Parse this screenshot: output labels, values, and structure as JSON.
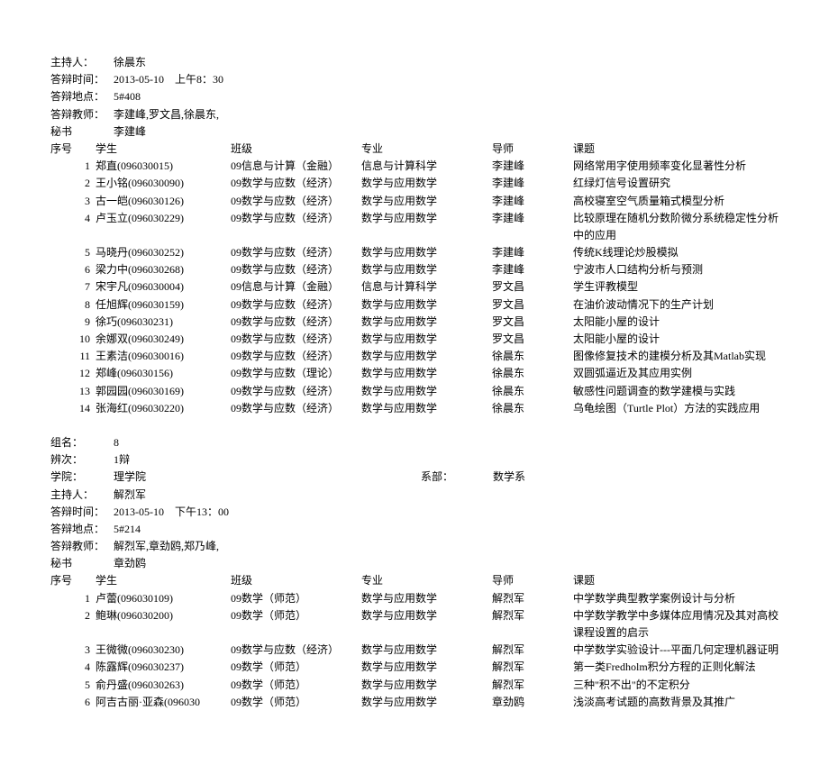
{
  "section1": {
    "host_label": "主持人：",
    "host": "徐晨东",
    "time_label": "答辩时间：",
    "time": "2013-05-10　上午8：30",
    "location_label": "答辩地点：",
    "location": "5#408",
    "teachers_label": "答辩教师：",
    "teachers": "李建峰,罗文昌,徐晨东,",
    "secretary_label": "秘书",
    "secretary": "李建峰",
    "header": {
      "num": "序号",
      "student": "学生",
      "class": "班级",
      "major": "专业",
      "advisor": "导师",
      "topic": "课题"
    },
    "rows": [
      {
        "num": "1",
        "student": "郑直(096030015)",
        "class": "09信息与计算（金融）",
        "major": "信息与计算科学",
        "advisor": "李建峰",
        "topic": "网络常用字使用频率变化显著性分析"
      },
      {
        "num": "2",
        "student": "王小铭(096030090)",
        "class": "09数学与应数（经济）",
        "major": "数学与应用数学",
        "advisor": "李建峰",
        "topic": "红绿灯信号设置研究"
      },
      {
        "num": "3",
        "student": "古一皑(096030126)",
        "class": "09数学与应数（经济）",
        "major": "数学与应用数学",
        "advisor": "李建峰",
        "topic": "高校寝室空气质量箱式模型分析"
      },
      {
        "num": "4",
        "student": "卢玉立(096030229)",
        "class": "09数学与应数（经济）",
        "major": "数学与应用数学",
        "advisor": "李建峰",
        "topic": "比较原理在随机分数阶微分系统稳定性分析中的应用"
      },
      {
        "num": "5",
        "student": "马晓丹(096030252)",
        "class": "09数学与应数（经济）",
        "major": "数学与应用数学",
        "advisor": "李建峰",
        "topic": "传统K线理论炒股模拟"
      },
      {
        "num": "6",
        "student": "梁力中(096030268)",
        "class": "09数学与应数（经济）",
        "major": "数学与应用数学",
        "advisor": "李建峰",
        "topic": "宁波市人口结构分析与预测"
      },
      {
        "num": "7",
        "student": "宋宇凡(096030004)",
        "class": "09信息与计算（金融）",
        "major": "信息与计算科学",
        "advisor": "罗文昌",
        "topic": " 学生评教模型"
      },
      {
        "num": "8",
        "student": "任旭辉(096030159)",
        "class": "09数学与应数（经济）",
        "major": "数学与应用数学",
        "advisor": "罗文昌",
        "topic": "在油价波动情况下的生产计划"
      },
      {
        "num": "9",
        "student": "徐巧(096030231)",
        "class": "09数学与应数（经济）",
        "major": "数学与应用数学",
        "advisor": "罗文昌",
        "topic": "太阳能小屋的设计"
      },
      {
        "num": "10",
        "student": "余娜双(096030249)",
        "class": "09数学与应数（经济）",
        "major": "数学与应用数学",
        "advisor": "罗文昌",
        "topic": "太阳能小屋的设计"
      },
      {
        "num": "11",
        "student": "王素洁(096030016)",
        "class": "09数学与应数（经济）",
        "major": "数学与应用数学",
        "advisor": "徐晨东",
        "topic": "图像修复技术的建模分析及其Matlab实现"
      },
      {
        "num": "12",
        "student": "郑峰(096030156)",
        "class": "09数学与应数（理论）",
        "major": "数学与应用数学",
        "advisor": "徐晨东",
        "topic": "双圆弧逼近及其应用实例"
      },
      {
        "num": "13",
        "student": "郭园园(096030169)",
        "class": "09数学与应数（经济）",
        "major": "数学与应用数学",
        "advisor": "徐晨东",
        "topic": "敏感性问题调查的数学建模与实践"
      },
      {
        "num": "14",
        "student": "张海红(096030220)",
        "class": "09数学与应数（经济）",
        "major": "数学与应用数学",
        "advisor": "徐晨东",
        "topic": "乌龟绘图（Turtle Plot）方法的实践应用"
      }
    ]
  },
  "section2": {
    "group_label": "组名：",
    "group": "8",
    "round_label": "辨次：",
    "round": "1辩",
    "college_label": "学院：",
    "college": "理学院",
    "dept_label": "系部：",
    "dept": "数学系",
    "host_label": "主持人：",
    "host": "解烈军",
    "time_label": "答辩时间：",
    "time": "2013-05-10　下午13：00",
    "location_label": "答辩地点：",
    "location": "5#214",
    "teachers_label": "答辩教师：",
    "teachers": "解烈军,章劲鸥,郑乃峰,",
    "secretary_label": "秘书",
    "secretary": "章劲鸥",
    "header": {
      "num": "序号",
      "student": "学生",
      "class": "班级",
      "major": "专业",
      "advisor": "导师",
      "topic": "课题"
    },
    "rows": [
      {
        "num": "1",
        "student": "卢蕾(096030109)",
        "class": "09数学（师范）",
        "major": "数学与应用数学",
        "advisor": "解烈军",
        "topic": "中学数学典型教学案例设计与分析"
      },
      {
        "num": "2",
        "student": "鲍琳(096030200)",
        "class": "09数学（师范）",
        "major": "数学与应用数学",
        "advisor": "解烈军",
        "topic": "中学数学教学中多媒体应用情况及其对高校课程设置的启示"
      },
      {
        "num": "3",
        "student": "王微微(096030230)",
        "class": "09数学与应数（经济）",
        "major": "数学与应用数学",
        "advisor": "解烈军",
        "topic": "中学数学实验设计---平面几何定理机器证明"
      },
      {
        "num": "4",
        "student": "陈露辉(096030237)",
        "class": "09数学（师范）",
        "major": "数学与应用数学",
        "advisor": "解烈军",
        "topic": "第一类Fredholm积分方程的正则化解法"
      },
      {
        "num": "5",
        "student": "俞丹盛(096030263)",
        "class": "09数学（师范）",
        "major": "数学与应用数学",
        "advisor": "解烈军",
        "topic": "三种\"积不出\"的不定积分"
      },
      {
        "num": "6",
        "student": "阿吉古丽·亚森(096030",
        "class": "09数学（师范）",
        "major": "数学与应用数学",
        "advisor": "章劲鸥",
        "topic": "浅淡高考试题的高数背景及其推广"
      }
    ]
  }
}
